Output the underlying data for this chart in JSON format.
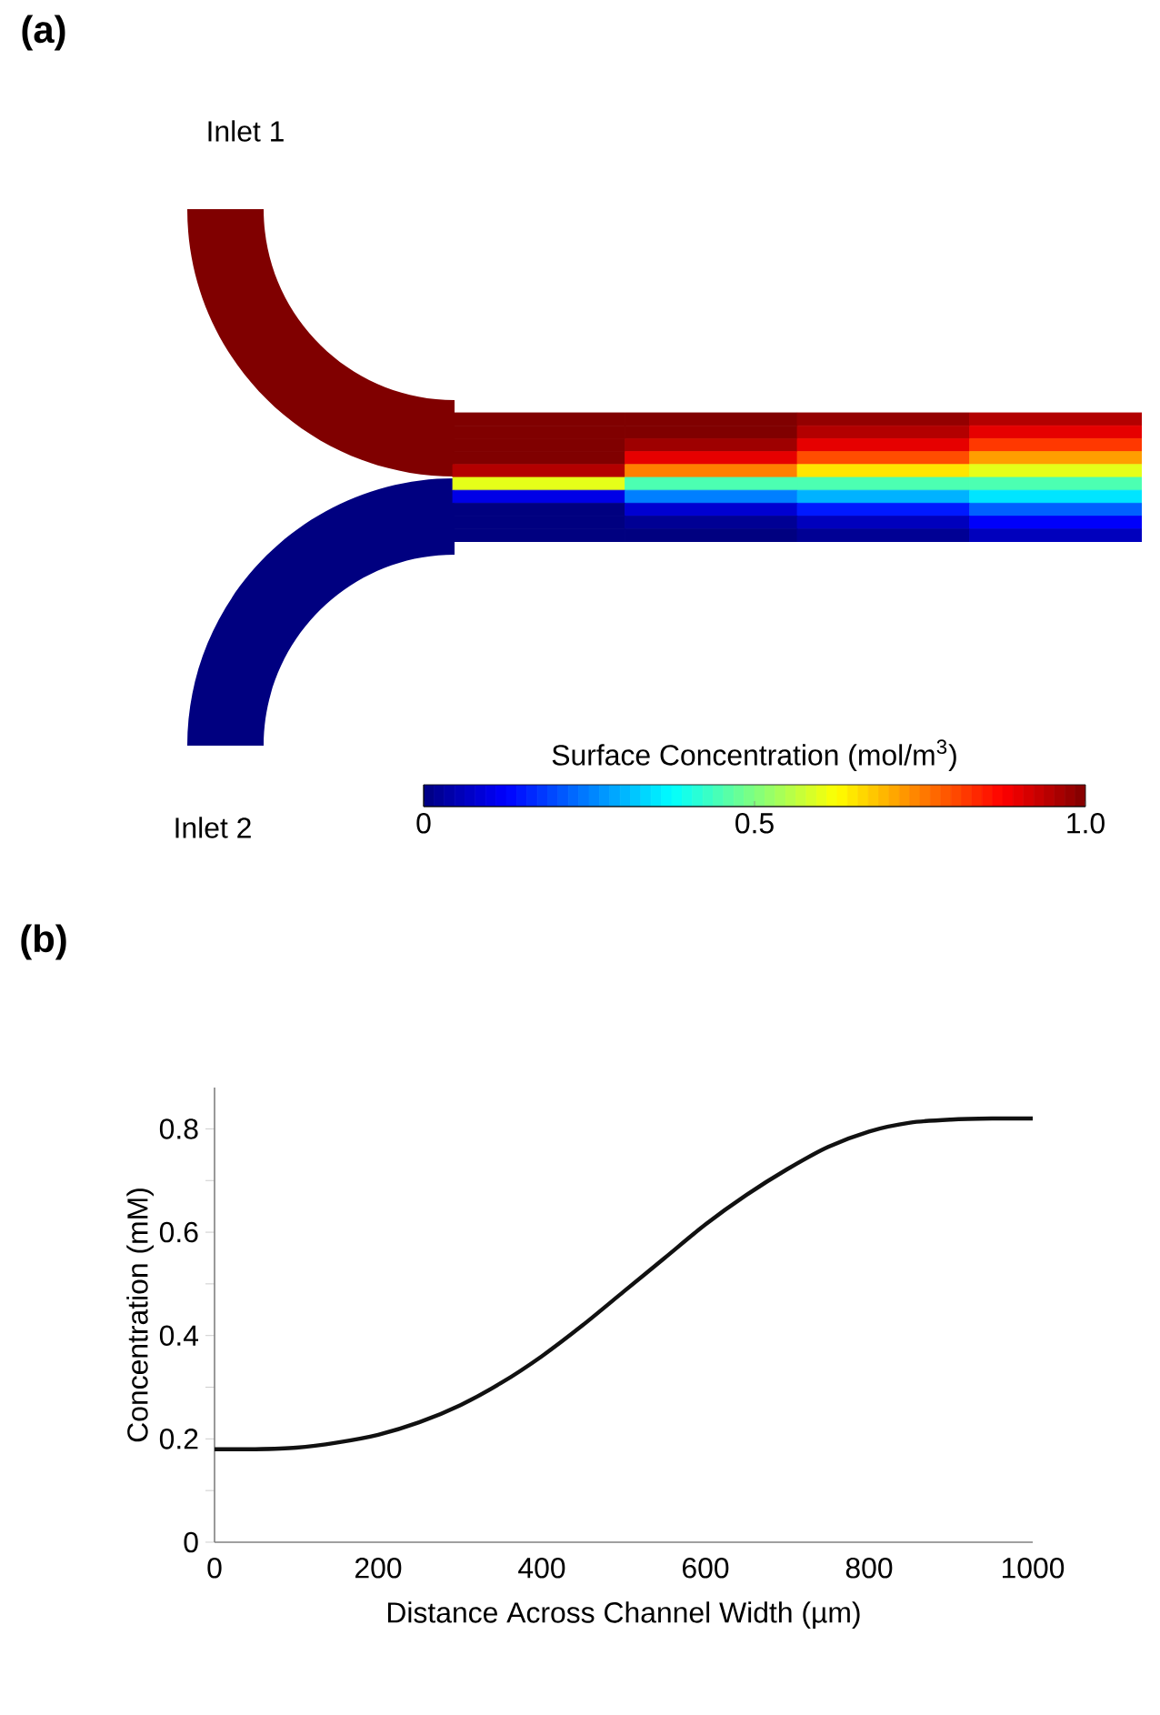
{
  "chart_data": [
    {
      "type": "heatmap",
      "annotations": [
        "(a)",
        "Inlet 1",
        "Inlet 2"
      ],
      "clabel": "Surface Concentration (mol/m$^{3}$)",
      "clim": [
        0,
        1
      ],
      "cticks": [
        0,
        0.5,
        {
          "value": 1,
          "label": "1.0"
        }
      ],
      "categories": [
        null,
        null,
        null,
        null
      ],
      "y_categories": [
        null,
        null,
        null,
        null,
        null,
        null,
        null,
        null,
        null,
        null
      ],
      "cells": [
        [
          1,
          1,
          0.98,
          0.95
        ],
        [
          1,
          1,
          0.95,
          0.9
        ],
        [
          1,
          0.97,
          0.9,
          0.82
        ],
        [
          1,
          0.9,
          0.8,
          0.72
        ],
        [
          0.95,
          0.75,
          0.65,
          0.6
        ],
        [
          0.6,
          0.45,
          0.45,
          0.45
        ],
        [
          0.1,
          0.25,
          0.3,
          0.35
        ],
        [
          0,
          0.08,
          0.15,
          0.22
        ],
        [
          0,
          0.02,
          0.06,
          0.12
        ],
        [
          0,
          0,
          0.02,
          0.06
        ]
      ]
    },
    {
      "type": "line",
      "annotations": [
        "(b)"
      ],
      "xlabel": "Distance Across Channel Width (µm)",
      "ylabel": "Concentration (mM)",
      "color": "#111111",
      "x": [
        0,
        50,
        100,
        150,
        200,
        250,
        300,
        350,
        400,
        450,
        500,
        550,
        600,
        650,
        700,
        750,
        800,
        850,
        900,
        950,
        1000
      ],
      "values": [
        0.18,
        0.18,
        0.183,
        0.193,
        0.208,
        0.232,
        0.265,
        0.308,
        0.36,
        0.42,
        0.485,
        0.55,
        0.615,
        0.672,
        0.722,
        0.765,
        0.795,
        0.812,
        0.818,
        0.82,
        0.82
      ],
      "xlim": [
        0,
        1000
      ],
      "ylim": [
        0,
        0.88
      ],
      "xticks": [
        0,
        200,
        400,
        600,
        800,
        1000
      ],
      "yticks": [
        0,
        {
          "value": 0.1,
          "label": null
        },
        0.2,
        {
          "value": 0.3,
          "label": null
        },
        0.4,
        {
          "value": 0.5,
          "label": null
        },
        0.6,
        {
          "value": 0.7,
          "label": null
        },
        0.8
      ]
    }
  ]
}
